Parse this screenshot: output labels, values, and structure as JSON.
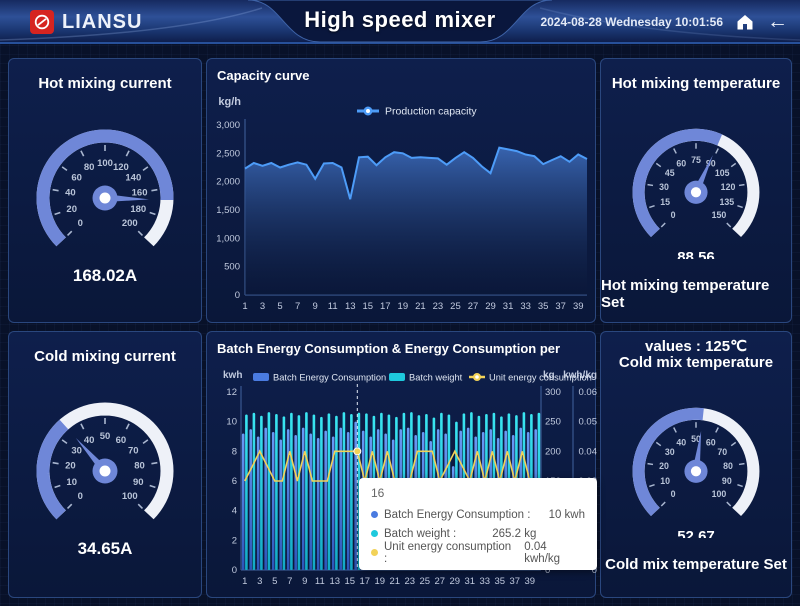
{
  "header": {
    "logo_text": "LIANSU",
    "title": "High speed mixer",
    "datetime": "2024-08-28 Wednesday 10:01:56"
  },
  "colors": {
    "gauge_blue": "#6f87d8",
    "gauge_white": "#eef1f8",
    "capacity_line": "#4d9cf8",
    "capacity_fill_top": "#3a67b4",
    "bar_blue": "#4a7be0",
    "bar_blue_dark": "#2c55b8",
    "bar_cyan": "#1ec9dd",
    "bar_cyan_dark": "#12a9c4",
    "line_yellow": "#f2d258",
    "axis_line": "#41639f",
    "axis_text": "#c2cbdf",
    "tick_text": "#b9c4d8"
  },
  "gauges": {
    "hot_current": {
      "title": "Hot mixing current",
      "value": 168.02,
      "display": "168.02A",
      "min": 0,
      "max": 200,
      "tick_labels": [
        "0",
        "20",
        "40",
        "60",
        "80",
        "100",
        "120",
        "140",
        "160",
        "180",
        "200"
      ]
    },
    "cold_current": {
      "title": "Cold mixing current",
      "value": 34.65,
      "display": "34.65A",
      "min": 0,
      "max": 100,
      "tick_labels": [
        "0",
        "10",
        "20",
        "30",
        "40",
        "50",
        "60",
        "70",
        "80",
        "90",
        "100"
      ]
    },
    "hot_temp": {
      "title": "Hot mixing temperature",
      "value": 88.56,
      "display": "88.56",
      "min": 0,
      "max": 150,
      "tick_labels": [
        "0",
        "15",
        "30",
        "45",
        "60",
        "75",
        "90",
        "105",
        "120",
        "135",
        "150"
      ],
      "set_label": "Hot mixing temperature Set",
      "set_value": "values : 125℃"
    },
    "cold_temp": {
      "title": "Cold mix temperature",
      "value": 52.67,
      "display": "52.67",
      "min": 0,
      "max": 100,
      "tick_labels": [
        "0",
        "10",
        "20",
        "30",
        "40",
        "50",
        "60",
        "70",
        "80",
        "90",
        "100"
      ],
      "set_label": "Cold mix temperature Set"
    }
  },
  "chart_data": [
    {
      "type": "area",
      "title": "Capacity curve",
      "ylabel": "kg/h",
      "legend": [
        "Production capacity"
      ],
      "legend_position": "top-center",
      "grid": false,
      "ylim": [
        0,
        3000
      ],
      "ytick_step": 500,
      "x": [
        1,
        2,
        3,
        4,
        5,
        6,
        7,
        8,
        9,
        10,
        11,
        12,
        13,
        14,
        15,
        16,
        17,
        18,
        19,
        20,
        21,
        22,
        23,
        24,
        25,
        26,
        27,
        28,
        29,
        30,
        31,
        32,
        33,
        34,
        35,
        36,
        37,
        38,
        39,
        40
      ],
      "values": [
        2230,
        2330,
        2280,
        2330,
        2250,
        2300,
        2340,
        2300,
        2050,
        2320,
        2330,
        2250,
        1690,
        2430,
        2440,
        2290,
        2430,
        2520,
        2500,
        2420,
        2430,
        2420,
        2410,
        2300,
        2420,
        2520,
        2420,
        2270,
        2150,
        2600,
        2570,
        2540,
        2480,
        2450,
        2310,
        2380,
        2450,
        2350,
        2480,
        2400
      ]
    },
    {
      "type": "bar",
      "title": "Batch Energy Consumption & Energy Consumption per",
      "axes": {
        "left": {
          "name": "kwh",
          "min": 0,
          "max": 12,
          "step": 2
        },
        "right1": {
          "name": "kg",
          "min": 0,
          "max": 300,
          "step": 50
        },
        "right2": {
          "name": "kwh/kg",
          "min": 0,
          "max": 0.06,
          "step": 0.01
        }
      },
      "categories": [
        1,
        2,
        3,
        4,
        5,
        6,
        7,
        8,
        9,
        10,
        11,
        12,
        13,
        14,
        15,
        16,
        17,
        18,
        19,
        20,
        21,
        22,
        23,
        24,
        25,
        26,
        27,
        28,
        29,
        30,
        31,
        32,
        33,
        34,
        35,
        36,
        37,
        38,
        39,
        40
      ],
      "series": [
        {
          "name": "Batch Energy Consumption",
          "type": "bar",
          "axis": "left",
          "values": [
            9.2,
            9.5,
            9.0,
            9.6,
            9.3,
            8.8,
            9.5,
            9.1,
            9.6,
            9.2,
            8.9,
            9.4,
            9.0,
            9.6,
            9.3,
            10,
            9.4,
            9.0,
            9.5,
            9.2,
            8.8,
            9.5,
            9.6,
            9.1,
            9.3,
            8.7,
            9.5,
            9.2,
            7.0,
            9.4,
            9.6,
            9.0,
            9.3,
            9.5,
            8.9,
            9.4,
            9.1,
            9.6,
            9.3,
            9.5
          ]
        },
        {
          "name": "Batch weight",
          "type": "bar",
          "axis": "right1",
          "values": [
            262,
            265,
            260,
            266,
            263,
            259,
            265,
            261,
            266,
            262,
            258,
            264,
            260,
            266,
            263,
            265.2,
            264,
            260,
            265,
            262,
            258,
            265,
            266,
            261,
            263,
            257,
            265,
            262,
            250,
            264,
            266,
            260,
            263,
            265,
            259,
            264,
            261,
            266,
            263,
            265
          ]
        },
        {
          "name": "Unit energy consumption",
          "type": "line",
          "axis": "right2",
          "values": [
            0.03,
            0.035,
            0.04,
            0.035,
            0.03,
            0.03,
            0.04,
            0.03,
            0.04,
            0.03,
            0.03,
            0.03,
            0.04,
            0.04,
            0.04,
            0.04,
            0.03,
            0.04,
            0.03,
            0.04,
            0.03,
            0.03,
            0.03,
            0.04,
            0.04,
            0.04,
            0.03,
            0.035,
            0.04,
            0.035,
            0.03,
            0.04,
            0.03,
            0.04,
            0.03,
            0.04,
            0.03,
            0.04,
            0.03,
            0.03
          ]
        }
      ],
      "highlight_index": 16,
      "tooltip": {
        "title": "16",
        "rows": [
          {
            "label": "Batch Energy Consumption :",
            "value": "10 kwh",
            "color": "#4a7be0"
          },
          {
            "label": "Batch weight :",
            "value": "265.2 kg",
            "color": "#1ec9dd"
          },
          {
            "label": "Unit energy consumption :",
            "value": "0.04 kwh/kg",
            "color": "#f2d258"
          }
        ]
      }
    }
  ]
}
